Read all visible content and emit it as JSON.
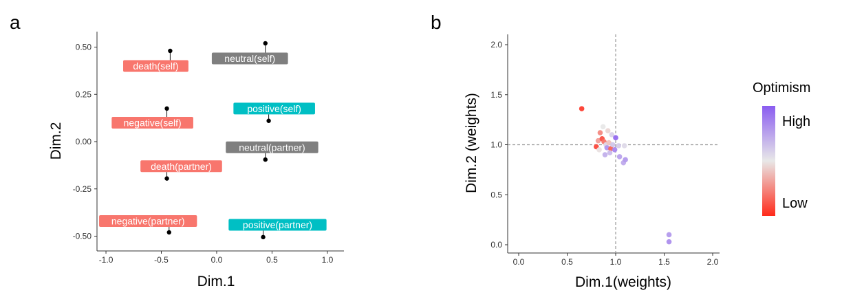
{
  "figure": {
    "panel_a_letter": "a",
    "panel_b_letter": "b"
  },
  "chart_data": [
    {
      "type": "scatter",
      "xlabel": "Dim.1",
      "ylabel": "Dim.2",
      "xlim": [
        -1.05,
        1.1
      ],
      "ylim": [
        -0.56,
        0.56
      ],
      "xticks": [
        -1.0,
        -0.5,
        0.0,
        0.5,
        1.0
      ],
      "xtick_labels": [
        "-1.0",
        "-0.5",
        "0.0",
        "0.5",
        "1.0"
      ],
      "yticks": [
        0.5,
        0.25,
        0.0,
        -0.25,
        -0.5
      ],
      "ytick_labels": [
        "0.50",
        "0.25",
        "0.00",
        "-0.25",
        "-0.50"
      ],
      "grid": false,
      "colors": {
        "death": "#f8766d",
        "negative": "#f8766d",
        "neutral": "#7f7f7f",
        "positive": "#00bfc4"
      },
      "points": [
        {
          "label": "death(self)",
          "group": "death",
          "x": -0.42,
          "y": 0.48,
          "lx": -0.55,
          "ly": 0.4
        },
        {
          "label": "neutral(self)",
          "group": "neutral",
          "x": 0.44,
          "y": 0.52,
          "lx": 0.3,
          "ly": 0.44
        },
        {
          "label": "negative(self)",
          "group": "negative",
          "x": -0.45,
          "y": 0.175,
          "lx": -0.58,
          "ly": 0.1
        },
        {
          "label": "positive(self)",
          "group": "positive",
          "x": 0.47,
          "y": 0.11,
          "lx": 0.52,
          "ly": 0.175
        },
        {
          "label": "neutral(partner)",
          "group": "neutral",
          "x": 0.44,
          "y": -0.095,
          "lx": 0.5,
          "ly": -0.03
        },
        {
          "label": "death(partner)",
          "group": "death",
          "x": -0.45,
          "y": -0.195,
          "lx": -0.32,
          "ly": -0.13
        },
        {
          "label": "negative(partner)",
          "group": "negative",
          "x": -0.43,
          "y": -0.48,
          "lx": -0.62,
          "ly": -0.42
        },
        {
          "label": "positive(partner)",
          "group": "positive",
          "x": 0.42,
          "y": -0.505,
          "lx": 0.55,
          "ly": -0.44
        }
      ]
    },
    {
      "type": "scatter",
      "xlabel": "Dim.1(weights)",
      "ylabel": "Dim.2 (weights)",
      "xlim": [
        -0.07,
        2.1
      ],
      "ylim": [
        -0.07,
        2.1
      ],
      "xticks": [
        0.0,
        0.5,
        1.0,
        1.5,
        2.0
      ],
      "xtick_labels": [
        "0.0",
        "0.5",
        "1.0",
        "1.5",
        "2.0"
      ],
      "yticks": [
        2.0,
        1.5,
        1.0,
        0.5,
        0.0
      ],
      "ytick_labels": [
        "2.0",
        "1.5",
        "1.0",
        "0.5",
        "0.0"
      ],
      "reference_lines": {
        "x": 1.0,
        "y": 1.0,
        "style": "dashed"
      },
      "grid": false,
      "legend": {
        "title": "Optimism",
        "high_label": "High",
        "low_label": "Low",
        "position": "right",
        "colors": {
          "low": "#ff2a1a",
          "mid": "#e8e8e8",
          "high": "#8a5cf0"
        }
      },
      "points": [
        {
          "x": 0.65,
          "y": 1.36,
          "optimism": 0.05
        },
        {
          "x": 0.84,
          "y": 1.12,
          "optimism": 0.25
        },
        {
          "x": 0.87,
          "y": 1.18,
          "optimism": 0.5
        },
        {
          "x": 0.92,
          "y": 1.14,
          "optimism": 0.45
        },
        {
          "x": 0.96,
          "y": 1.1,
          "optimism": 0.58
        },
        {
          "x": 1.0,
          "y": 1.07,
          "optimism": 0.95
        },
        {
          "x": 0.8,
          "y": 0.98,
          "optimism": 0.08
        },
        {
          "x": 0.82,
          "y": 1.04,
          "optimism": 0.3
        },
        {
          "x": 0.86,
          "y": 1.06,
          "optimism": 0.1
        },
        {
          "x": 0.88,
          "y": 1.03,
          "optimism": 0.2
        },
        {
          "x": 0.9,
          "y": 1.0,
          "optimism": 0.55
        },
        {
          "x": 0.91,
          "y": 0.97,
          "optimism": 0.8
        },
        {
          "x": 0.93,
          "y": 1.02,
          "optimism": 0.4
        },
        {
          "x": 0.95,
          "y": 0.96,
          "optimism": 0.15
        },
        {
          "x": 0.97,
          "y": 1.0,
          "optimism": 0.62
        },
        {
          "x": 0.99,
          "y": 0.95,
          "optimism": 0.85
        },
        {
          "x": 1.03,
          "y": 0.99,
          "optimism": 0.6
        },
        {
          "x": 1.09,
          "y": 0.99,
          "optimism": 0.55
        },
        {
          "x": 0.89,
          "y": 0.9,
          "optimism": 0.7
        },
        {
          "x": 0.94,
          "y": 0.92,
          "optimism": 0.66
        },
        {
          "x": 1.04,
          "y": 0.88,
          "optimism": 0.75
        },
        {
          "x": 1.08,
          "y": 0.82,
          "optimism": 0.72
        },
        {
          "x": 1.1,
          "y": 0.85,
          "optimism": 0.78
        },
        {
          "x": 0.83,
          "y": 0.95,
          "optimism": 0.48
        },
        {
          "x": 1.55,
          "y": 0.1,
          "optimism": 0.78
        },
        {
          "x": 1.55,
          "y": 0.03,
          "optimism": 0.82
        }
      ]
    }
  ]
}
